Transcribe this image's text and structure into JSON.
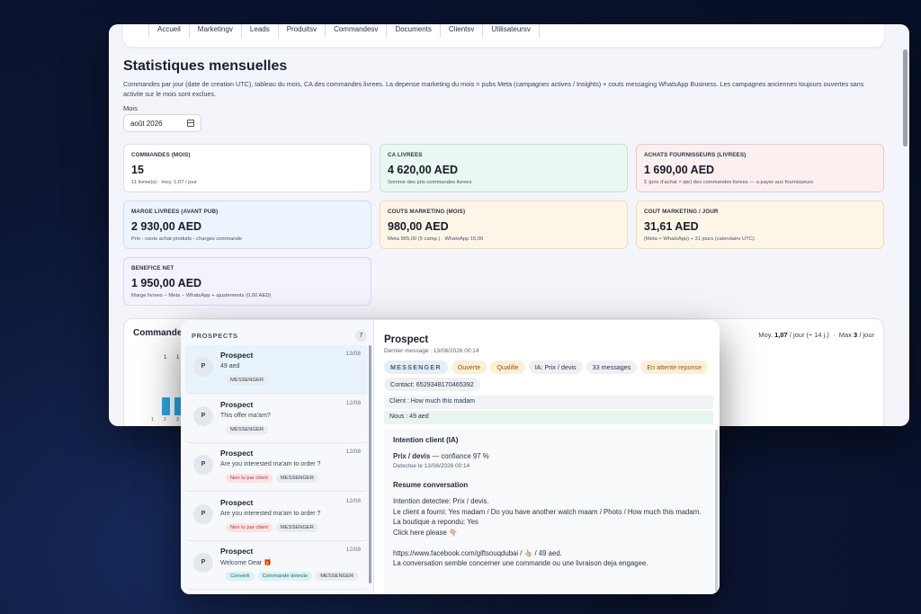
{
  "nav": [
    "Accueil",
    "Marketingv",
    "Leads",
    "Produitsv",
    "Commandesv",
    "Documents",
    "Clientsv",
    "Utilisateursv"
  ],
  "page": {
    "title": "Statistiques mensuelles",
    "description": "Commandes par jour (date de creation UTC), tableau du mois, CA des commandes livrees. La depense marketing du mois = pubs Meta (campagnes actives / Insights) + couts messaging WhatsApp Business. Les campagnes anciennes toujours ouvertes sans activite sur le mois sont exclues.",
    "mois_label": "Mois",
    "mois_value": "août 2026"
  },
  "cards": [
    {
      "label": "COMMANDES (MOIS)",
      "value": "15",
      "sub": "11 livree(s) · moy. 1,07 / jour"
    },
    {
      "label": "CA LIVREES",
      "value": "4 620,00 AED",
      "sub": "Somme des prix commandes livrees"
    },
    {
      "label": "ACHATS FOURNISSEURS (LIVREES)",
      "value": "1 690,00 AED",
      "sub": "Σ (prix d'achat × qte) des commandes livrees — a payer aux fournisseurs"
    },
    {
      "label": "MARGE LIVREES (AVANT PUB)",
      "value": "2 930,00 AED",
      "sub": "Prix - couts achat produits - charges commande"
    },
    {
      "label": "COUTS MARKETING (MOIS)",
      "value": "980,00 AED",
      "sub": "Meta 965,00 (5 camp.) · WhatsApp 15,00"
    },
    {
      "label": "COUT MARKETING / JOUR",
      "value": "31,61 AED",
      "sub": "(Meta + WhatsApp) ÷ 31 jours (calendaire UTC)"
    },
    {
      "label": "BENEFICE NET",
      "value": "1 950,00 AED",
      "sub": "Marge livrees − Meta − WhatsApp + ajustements (0,00 AED)"
    }
  ],
  "chart": {
    "title": "Commandes",
    "stat_moy_prefix": "Moy.",
    "stat_moy_value": "1,07",
    "stat_moy_suffix": "/ jour (÷ 14 j.)",
    "stat_max_prefix": "Max",
    "stat_max_value": "3",
    "stat_max_suffix": "/ jour"
  },
  "chart_data": {
    "type": "bar",
    "title": "Commandes",
    "categories": [
      "1",
      "2",
      "3",
      "4"
    ],
    "values": [
      0,
      1,
      1,
      0
    ],
    "color": "#29a8e8"
  },
  "prospects": {
    "header": "PROSPECTS",
    "count": "7",
    "items": [
      {
        "avatar": "P",
        "name": "Prospect",
        "date": "13/08",
        "msg": "49 aed",
        "tags": [
          {
            "text": "MESSENGER",
            "kind": ""
          }
        ]
      },
      {
        "avatar": "P",
        "name": "Prospect",
        "date": "12/08",
        "msg": "This offer ma'am?",
        "tags": [
          {
            "text": "MESSENGER",
            "kind": ""
          }
        ]
      },
      {
        "avatar": "P",
        "name": "Prospect",
        "date": "12/08",
        "msg": "Are you interested ma'am to order ?",
        "tags": [
          {
            "text": "Non lu par client",
            "kind": "red"
          },
          {
            "text": "MESSENGER",
            "kind": ""
          }
        ]
      },
      {
        "avatar": "P",
        "name": "Prospect",
        "date": "12/08",
        "msg": "Are you interested ma'am to order ?",
        "tags": [
          {
            "text": "Non lu par client",
            "kind": "red"
          },
          {
            "text": "MESSENGER",
            "kind": ""
          }
        ]
      },
      {
        "avatar": "P",
        "name": "Prospect",
        "date": "12/08",
        "msg": "Welcome Dear 🎁",
        "tags": [
          {
            "text": "Converti",
            "kind": "teal"
          },
          {
            "text": "Commande detecte",
            "kind": "teal"
          },
          {
            "text": "MESSENGER",
            "kind": ""
          }
        ]
      }
    ]
  },
  "detail": {
    "title": "Prospect",
    "subtitle": "Dernier message : 13/08/2026 00:14",
    "chips": [
      {
        "text": "MESSENGER",
        "kind": "msg"
      },
      {
        "text": "Ouverte",
        "kind": "warn"
      },
      {
        "text": "Qualifie",
        "kind": "warn"
      },
      {
        "text": "IA: Prix / devis",
        "kind": ""
      },
      {
        "text": "33 messages",
        "kind": ""
      },
      {
        "text": "En attente reponse",
        "kind": "warn"
      },
      {
        "text": "Contact: 6529348170465392",
        "kind": ""
      }
    ],
    "client_msg": "Client : How much this madam",
    "nous_msg": "Nous : 49 aed",
    "intention_title": "Intention client (IA)",
    "intention_main": "Prix / devis",
    "intention_conf": " — confiance 97 %",
    "intention_detected": "Detectee le 13/08/2026 00:14",
    "resume_title": "Resume conversation",
    "resume_lines": [
      "Intention detectee: Prix / devis.",
      "Le client a fourni: Yes madam / Do you have another watch maam / Photo / How much this madam.",
      "La boutique a repondu: Yes",
      "Click here please 👇🏼",
      "",
      "https://www.facebook.com/giftsouqdubai / 👆🏼 / 49 aed.",
      "La conversation semble concerner une commande ou une livraison deja engagee."
    ]
  }
}
